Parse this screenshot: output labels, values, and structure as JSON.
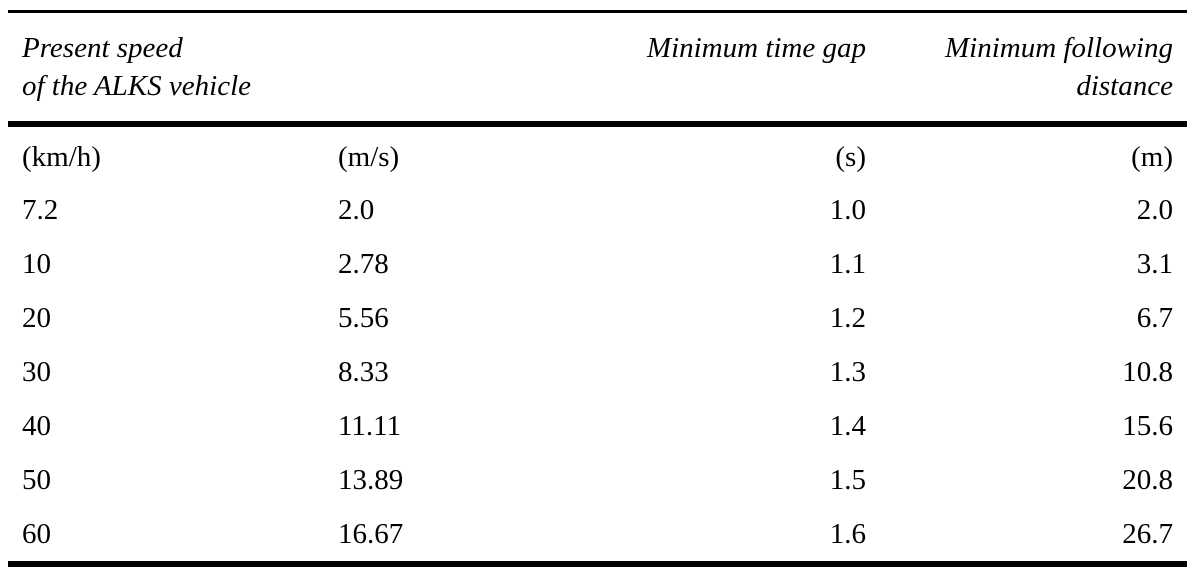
{
  "table": {
    "header": {
      "speed_line1": "Present speed",
      "speed_line2": "of the ALKS vehicle",
      "time_gap": "Minimum time gap",
      "following_line1": "Minimum following",
      "following_line2": "distance"
    },
    "units": [
      "(km/h)",
      "(m/s)",
      "(s)",
      "(m)"
    ],
    "rows": [
      [
        "7.2",
        "2.0",
        "1.0",
        "2.0"
      ],
      [
        "10",
        "2.78",
        "1.1",
        "3.1"
      ],
      [
        "20",
        "5.56",
        "1.2",
        "6.7"
      ],
      [
        "30",
        "8.33",
        "1.3",
        "10.8"
      ],
      [
        "40",
        "11.11",
        "1.4",
        "15.6"
      ],
      [
        "50",
        "13.89",
        "1.5",
        "20.8"
      ],
      [
        "60",
        "16.67",
        "1.6",
        "26.7"
      ]
    ],
    "colors": {
      "text": "#000000",
      "rule": "#000000",
      "background": "#ffffff"
    }
  }
}
